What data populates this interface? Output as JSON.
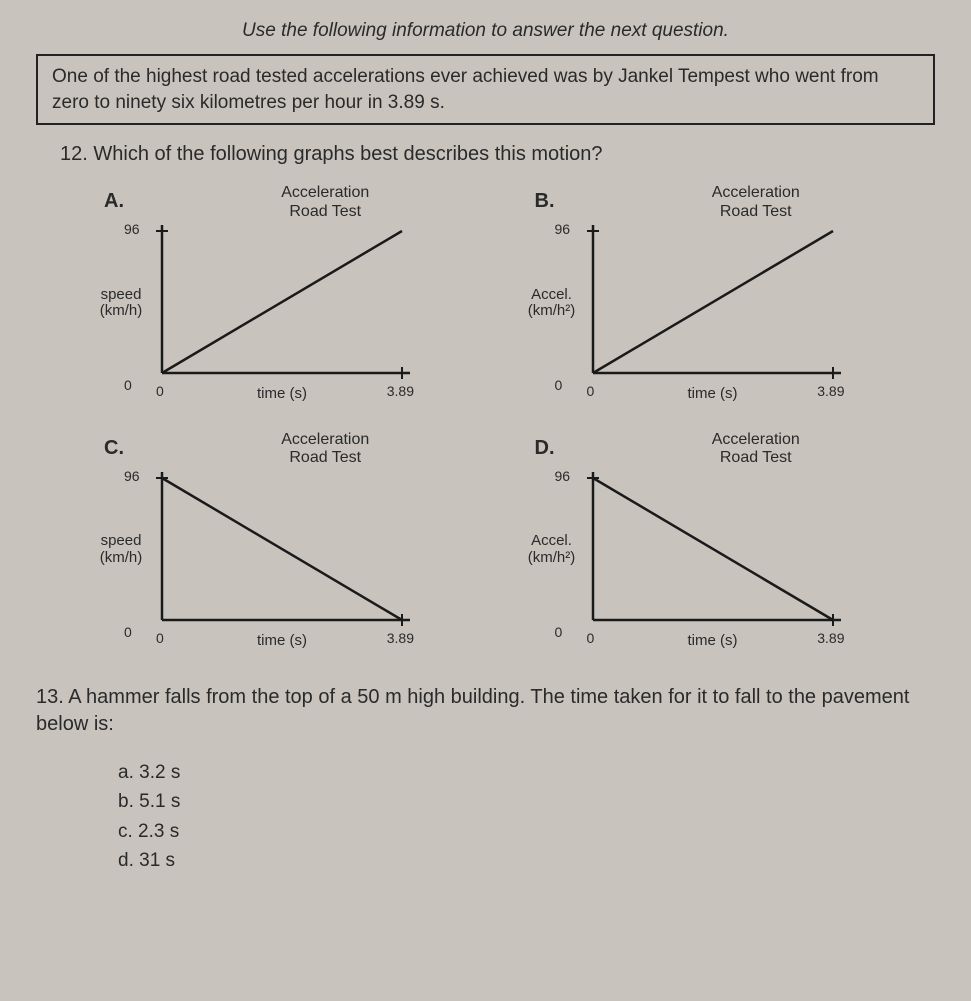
{
  "instruction": "Use the following information to answer the next question.",
  "infoBox": "One of the highest road tested accelerations ever achieved was by Jankel Tempest who went from zero to ninety six kilometres per hour in 3.89 s.",
  "q12": {
    "number": "12.",
    "text": "Which of the following graphs best describes this motion?"
  },
  "graphs": {
    "title": "Acceleration\nRoad Test",
    "xAxisLabel": "time (s)",
    "xTickStart": "0",
    "xTickEnd": "3.89",
    "yTickTop": "96",
    "yTickBot": "0",
    "items": [
      {
        "label": "A.",
        "ylabel": "speed\n(km/h)",
        "lineType": "up"
      },
      {
        "label": "B.",
        "ylabel": "Accel.\n(km/h²)",
        "lineType": "up"
      },
      {
        "label": "C.",
        "ylabel": "speed\n(km/h)",
        "lineType": "down"
      },
      {
        "label": "D.",
        "ylabel": "Accel.\n(km/h²)",
        "lineType": "down"
      }
    ]
  },
  "q13": {
    "number": "13.",
    "text": "A hammer falls from the top of a 50 m high building.  The time taken for it to fall to the pavement below is:",
    "options": [
      {
        "label": "a.",
        "text": "3.2 s"
      },
      {
        "label": "b.",
        "text": "5.1 s"
      },
      {
        "label": "c.",
        "text": "2.3 s"
      },
      {
        "label": "d.",
        "text": "31 s"
      }
    ]
  },
  "colors": {
    "axis": "#1a1a1a",
    "line": "#1a1a1a"
  }
}
